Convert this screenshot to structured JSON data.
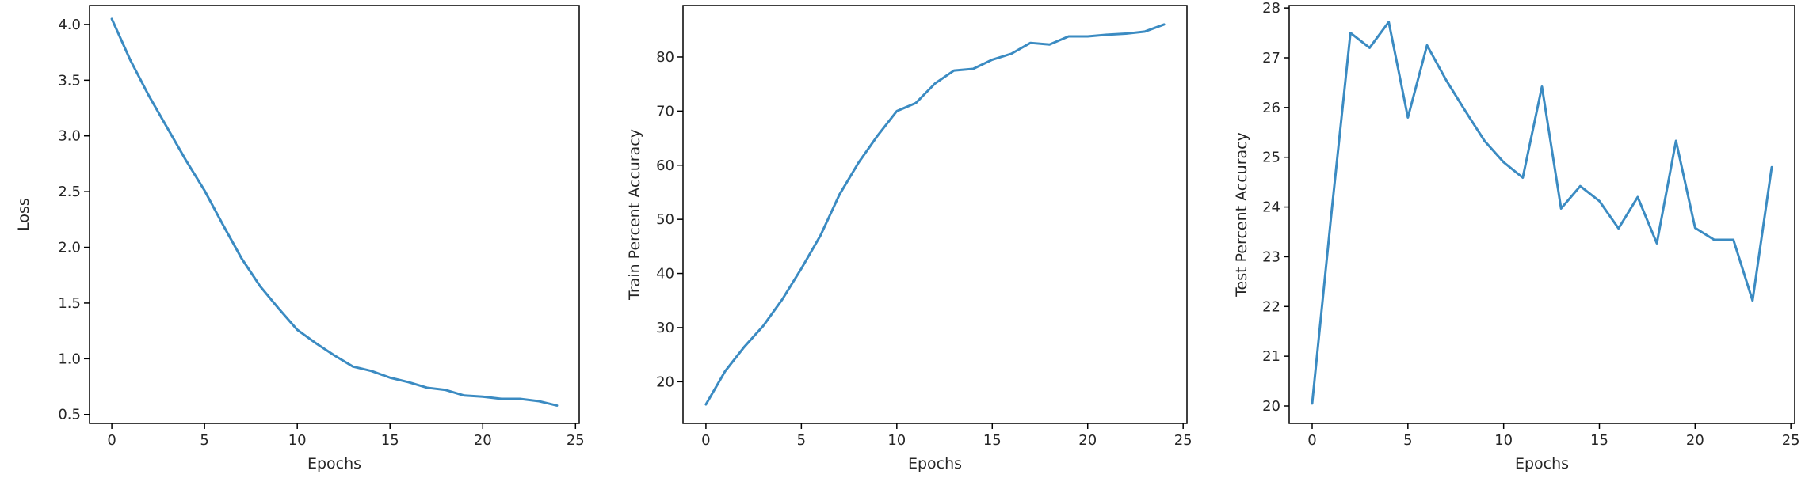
{
  "chart_data": [
    {
      "type": "line",
      "title": "",
      "xlabel": "Epochs",
      "ylabel": "Loss",
      "xlim": [
        -1.2,
        25.2
      ],
      "ylim": [
        0.42,
        4.17
      ],
      "xticks": [
        0,
        5,
        10,
        15,
        20,
        25
      ],
      "yticks": [
        0.5,
        1.0,
        1.5,
        2.0,
        2.5,
        3.0,
        3.5,
        4.0
      ],
      "ytick_labels": [
        "0.5",
        "1.0",
        "1.5",
        "2.0",
        "2.5",
        "3.0",
        "3.5",
        "4.0"
      ],
      "grid": false,
      "color": "#3b8bc2",
      "series": [
        {
          "x": [
            0,
            1,
            2,
            3,
            4,
            5,
            6,
            7,
            8,
            9,
            10,
            11,
            12,
            13,
            14,
            15,
            16,
            17,
            18,
            19,
            20,
            21,
            22,
            23,
            24
          ],
          "values": [
            4.05,
            3.68,
            3.36,
            3.07,
            2.78,
            2.51,
            2.2,
            1.9,
            1.65,
            1.45,
            1.26,
            1.14,
            1.03,
            0.93,
            0.89,
            0.83,
            0.79,
            0.74,
            0.72,
            0.67,
            0.66,
            0.64,
            0.64,
            0.62,
            0.58
          ]
        }
      ]
    },
    {
      "type": "line",
      "title": "",
      "xlabel": "Epochs",
      "ylabel": "Train Percent Accuracy",
      "xlim": [
        -1.2,
        25.2
      ],
      "ylim": [
        12.3,
        89.5
      ],
      "xticks": [
        0,
        5,
        10,
        15,
        20,
        25
      ],
      "yticks": [
        20,
        30,
        40,
        50,
        60,
        70,
        80
      ],
      "ytick_labels": [
        "20",
        "30",
        "40",
        "50",
        "60",
        "70",
        "80"
      ],
      "grid": false,
      "color": "#3b8bc2",
      "series": [
        {
          "x": [
            0,
            1,
            2,
            3,
            4,
            5,
            6,
            7,
            8,
            9,
            10,
            11,
            12,
            13,
            14,
            15,
            16,
            17,
            18,
            19,
            20,
            21,
            22,
            23,
            24
          ],
          "values": [
            15.8,
            21.9,
            26.4,
            30.3,
            35.2,
            40.9,
            47.0,
            54.6,
            60.5,
            65.5,
            70.0,
            71.5,
            75.1,
            77.5,
            77.8,
            79.5,
            80.6,
            82.6,
            82.3,
            83.8,
            83.8,
            84.1,
            84.3,
            84.7,
            86.0
          ]
        }
      ]
    },
    {
      "type": "line",
      "title": "",
      "xlabel": "Epochs",
      "ylabel": "Test Percent Accuracy",
      "xlim": [
        -1.2,
        25.2
      ],
      "ylim": [
        19.65,
        28.05
      ],
      "xticks": [
        0,
        5,
        10,
        15,
        20,
        25
      ],
      "yticks": [
        20,
        21,
        22,
        23,
        24,
        25,
        26,
        27,
        28
      ],
      "ytick_labels": [
        "20",
        "21",
        "22",
        "23",
        "24",
        "25",
        "26",
        "27",
        "28"
      ],
      "grid": false,
      "color": "#3b8bc2",
      "series": [
        {
          "x": [
            0,
            1,
            2,
            3,
            4,
            5,
            6,
            7,
            8,
            9,
            10,
            11,
            12,
            13,
            14,
            15,
            16,
            17,
            18,
            19,
            20,
            21,
            22,
            23,
            24
          ],
          "values": [
            20.05,
            23.85,
            27.5,
            27.2,
            27.72,
            25.8,
            27.25,
            26.55,
            25.93,
            25.33,
            24.9,
            24.59,
            26.42,
            23.97,
            24.42,
            24.12,
            23.57,
            24.2,
            23.27,
            25.33,
            23.58,
            23.34,
            23.34,
            22.12,
            24.8
          ]
        }
      ]
    }
  ]
}
